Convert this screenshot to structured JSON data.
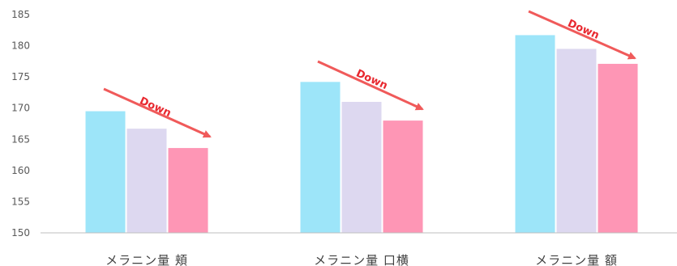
{
  "chart_data": {
    "type": "bar",
    "categories": [
      "メラニン量 頬",
      "メラニン量 口横",
      "メラニン量 額"
    ],
    "series": [
      {
        "values": [
          169.5,
          174.2,
          181.7
        ]
      },
      {
        "values": [
          166.7,
          171.0,
          179.5
        ]
      },
      {
        "values": [
          163.6,
          168.0,
          177.1
        ]
      }
    ],
    "ylim": [
      150,
      185
    ],
    "yticks": [
      150,
      155,
      160,
      165,
      170,
      175,
      180,
      185
    ],
    "grid": false,
    "legend": "none",
    "annotations": [
      "Down",
      "Down",
      "Down"
    ],
    "colors": {
      "series": [
        "#9de5f9",
        "#ddd8f0",
        "#fe96b5"
      ],
      "arrow": "#f05a5a",
      "annotation_text": "#e8282f",
      "axis": "#bfbfbf"
    }
  }
}
